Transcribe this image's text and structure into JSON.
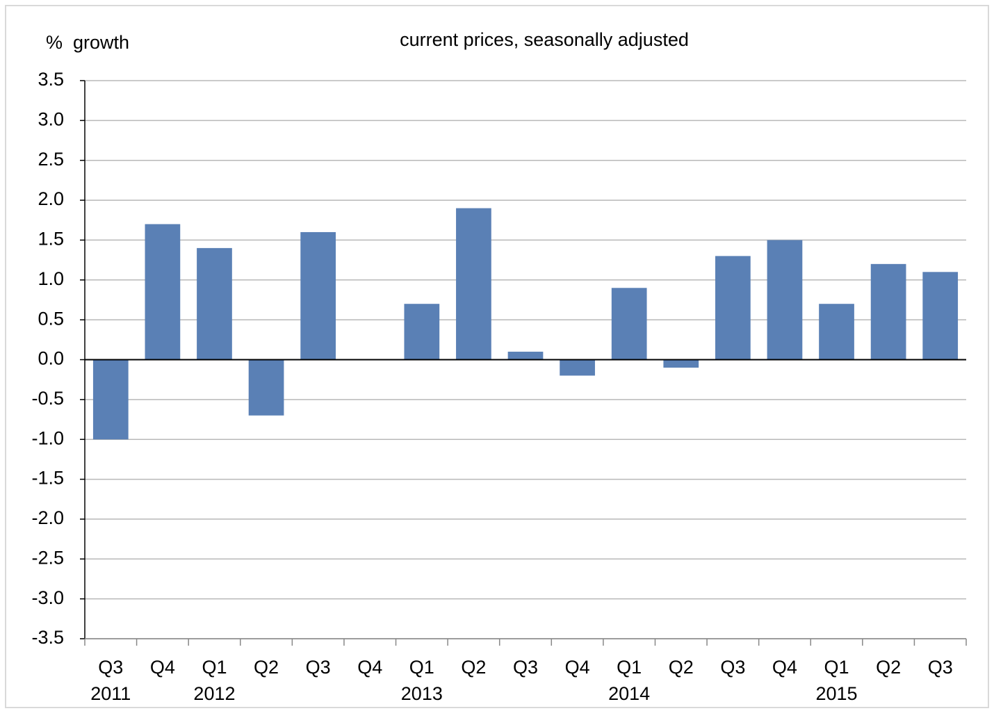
{
  "chart_data": {
    "type": "bar",
    "title": "current prices, seasonally adjusted",
    "y_label": "%  growth",
    "categories": [
      "Q3",
      "Q4",
      "Q1",
      "Q2",
      "Q3",
      "Q4",
      "Q1",
      "Q2",
      "Q3",
      "Q4",
      "Q1",
      "Q2",
      "Q3",
      "Q4",
      "Q1",
      "Q2",
      "Q3"
    ],
    "years": [
      "2011",
      null,
      "2012",
      null,
      null,
      null,
      "2013",
      null,
      null,
      null,
      "2014",
      null,
      null,
      null,
      "2015",
      null,
      null
    ],
    "values": [
      -1.0,
      1.7,
      1.4,
      -0.7,
      1.6,
      0.0,
      0.7,
      1.9,
      0.1,
      -0.2,
      0.9,
      -0.1,
      1.3,
      1.5,
      0.7,
      1.2,
      1.1
    ],
    "color": "#5a80b5",
    "ylim": [
      -3.5,
      3.5
    ],
    "yticks": [
      3.5,
      {
        "value": 3,
        "label": "3.0"
      },
      2.5,
      {
        "value": 2,
        "label": "2.0"
      },
      1.5,
      {
        "value": 1,
        "label": "1.0"
      },
      0.5,
      {
        "value": 0,
        "label": "0.0"
      },
      -0.5,
      {
        "value": -1,
        "label": "-1.0"
      },
      -1.5,
      {
        "value": -2,
        "label": "-2.0"
      },
      -2.5,
      {
        "value": -3,
        "label": "-3.0"
      },
      -3.5
    ],
    "grid": true
  }
}
